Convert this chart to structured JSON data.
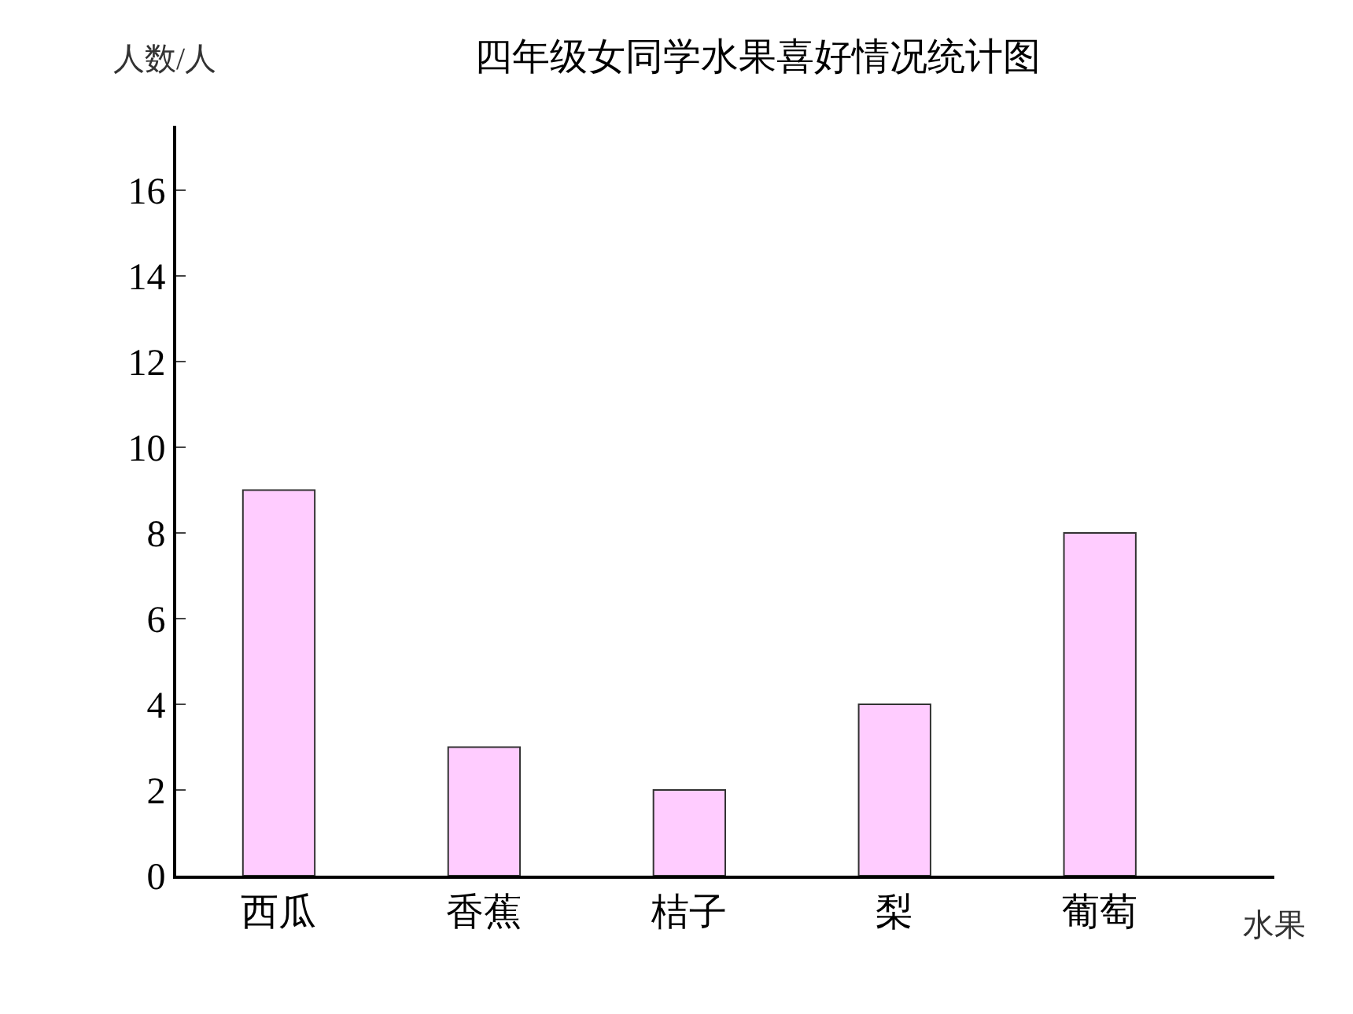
{
  "chart_data": {
    "type": "bar",
    "title": "四年级女同学水果喜好情况统计图",
    "xlabel": "水果",
    "ylabel": "人数/人",
    "categories": [
      "西瓜",
      "香蕉",
      "桔子",
      "梨",
      "葡萄"
    ],
    "values": [
      9,
      3,
      2,
      4,
      8
    ],
    "color": "#ffccff",
    "ylim": [
      0,
      17.5
    ],
    "yticks": [
      0,
      2,
      4,
      6,
      8,
      10,
      12,
      14,
      16
    ],
    "grid": false
  }
}
